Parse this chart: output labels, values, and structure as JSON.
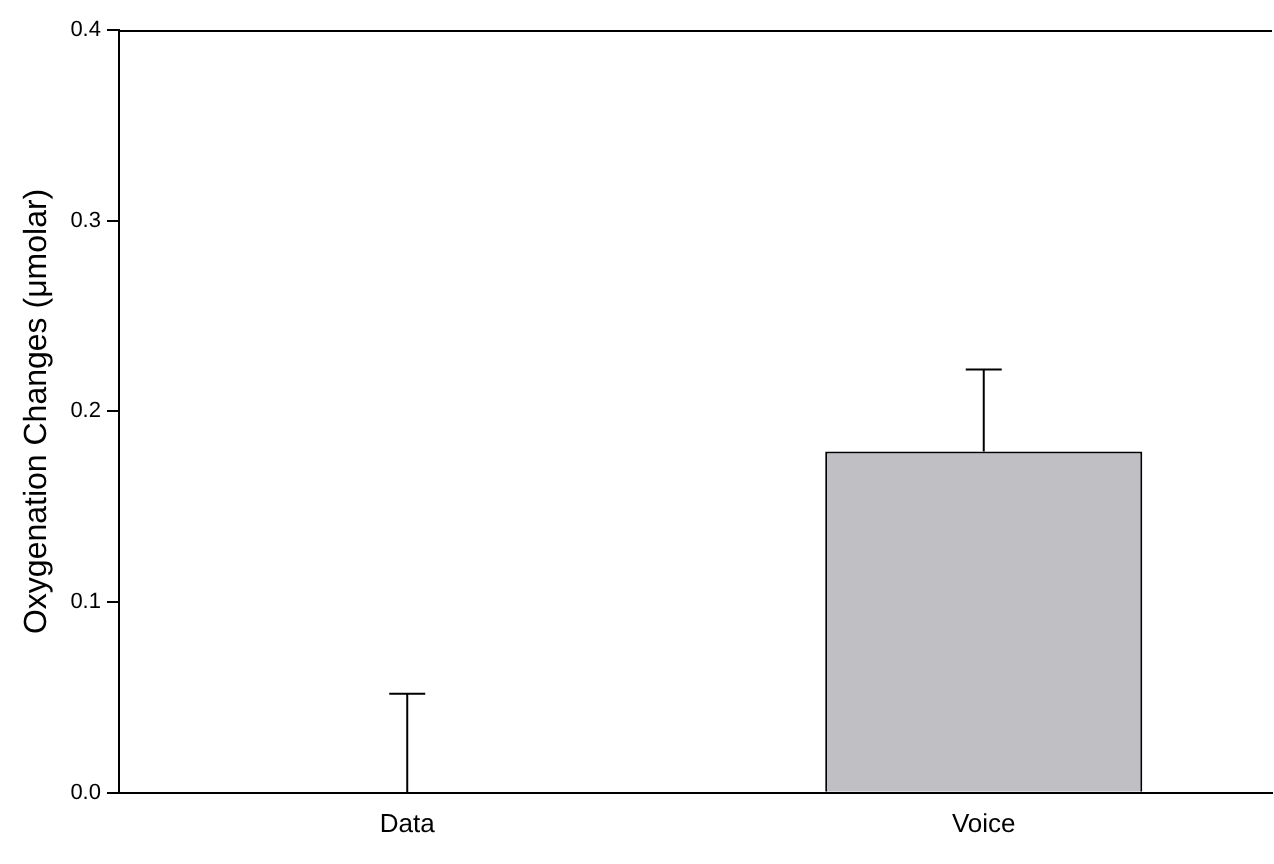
{
  "chart_data": {
    "type": "bar",
    "ylabel": "Oxygenation Changes (μmolar)",
    "categories": [
      "Data",
      "Voice"
    ],
    "values": [
      0,
      0.179
    ],
    "errors": [
      [
        0,
        0.052
      ],
      [
        0.179,
        0.222
      ]
    ],
    "color": "#c0bfc4",
    "ylim": [
      0,
      0.4
    ],
    "yticks": [
      {
        "value": 0,
        "label": "0.0"
      },
      {
        "value": 0.1,
        "label": "0.1"
      },
      {
        "value": 0.2,
        "label": "0.2"
      },
      {
        "value": 0.3,
        "label": "0.3"
      },
      {
        "value": 0.4,
        "label": "0.4"
      }
    ],
    "grid": false,
    "legend": false
  }
}
